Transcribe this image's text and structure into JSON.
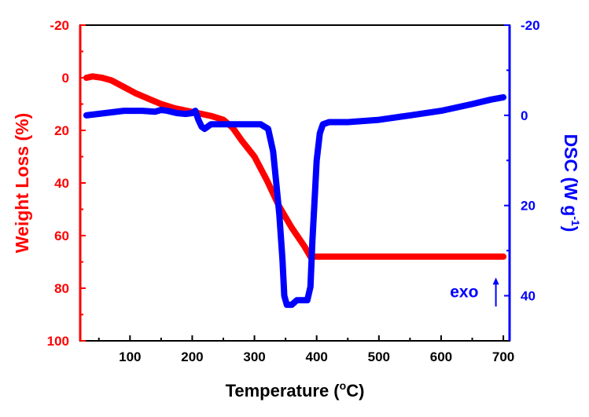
{
  "chart_data": {
    "type": "line",
    "dual_axis": true,
    "xlabel": "Temperature (",
    "xlabel_sup": "o",
    "xlabel_tail": "C)",
    "xlim": [
      20,
      710
    ],
    "xticks": [
      100,
      200,
      300,
      400,
      500,
      600,
      700
    ],
    "y_left": {
      "label": "Weight Loss (%)",
      "color": "#ff0000",
      "inverted": true,
      "lim": [
        -20,
        100
      ],
      "ticks": [
        -20,
        0,
        20,
        40,
        60,
        80,
        100
      ]
    },
    "y_right": {
      "label": "DSC (W g",
      "label_sup": "-1",
      "label_tail": ")",
      "color": "#0000ff",
      "inverted": true,
      "lim": [
        -20,
        50
      ],
      "ticks": [
        -20,
        0,
        20,
        40
      ]
    },
    "annotation": {
      "text": "exo",
      "x": 660,
      "arrow_x": 688,
      "y_right_from": 41,
      "y_right_to": 37
    },
    "series": [
      {
        "axis": "left",
        "color": "#ff0000",
        "points": [
          [
            30,
            0
          ],
          [
            40,
            -0.5
          ],
          [
            55,
            0
          ],
          [
            70,
            1
          ],
          [
            90,
            3.5
          ],
          [
            110,
            6
          ],
          [
            130,
            8
          ],
          [
            150,
            10
          ],
          [
            170,
            11.5
          ],
          [
            190,
            12.5
          ],
          [
            210,
            13.5
          ],
          [
            230,
            14.5
          ],
          [
            250,
            16
          ],
          [
            265,
            19
          ],
          [
            280,
            24
          ],
          [
            300,
            30
          ],
          [
            320,
            39
          ],
          [
            340,
            49
          ],
          [
            360,
            57
          ],
          [
            380,
            64
          ],
          [
            390,
            68
          ],
          [
            400,
            68
          ],
          [
            500,
            68
          ],
          [
            600,
            68
          ],
          [
            700,
            68
          ]
        ]
      },
      {
        "axis": "right",
        "color": "#0000ff",
        "points": [
          [
            30,
            0
          ],
          [
            60,
            -0.5
          ],
          [
            90,
            -1
          ],
          [
            120,
            -1
          ],
          [
            140,
            -0.8
          ],
          [
            150,
            -1.2
          ],
          [
            160,
            -1
          ],
          [
            175,
            -0.5
          ],
          [
            190,
            -0.3
          ],
          [
            200,
            -0.5
          ],
          [
            205,
            -1
          ],
          [
            210,
            1
          ],
          [
            215,
            2.5
          ],
          [
            220,
            3
          ],
          [
            225,
            2.5
          ],
          [
            230,
            2
          ],
          [
            250,
            2
          ],
          [
            270,
            2
          ],
          [
            290,
            2
          ],
          [
            310,
            2
          ],
          [
            322,
            3
          ],
          [
            330,
            8
          ],
          [
            335,
            15
          ],
          [
            340,
            22
          ],
          [
            345,
            32
          ],
          [
            348,
            40
          ],
          [
            352,
            42
          ],
          [
            360,
            42
          ],
          [
            368,
            41
          ],
          [
            378,
            41
          ],
          [
            385,
            41
          ],
          [
            390,
            38
          ],
          [
            393,
            28
          ],
          [
            397,
            18
          ],
          [
            400,
            10
          ],
          [
            405,
            4
          ],
          [
            410,
            2
          ],
          [
            420,
            1.5
          ],
          [
            450,
            1.5
          ],
          [
            500,
            1
          ],
          [
            550,
            0
          ],
          [
            600,
            -1
          ],
          [
            650,
            -2.5
          ],
          [
            680,
            -3.5
          ],
          [
            700,
            -4
          ]
        ]
      }
    ]
  }
}
